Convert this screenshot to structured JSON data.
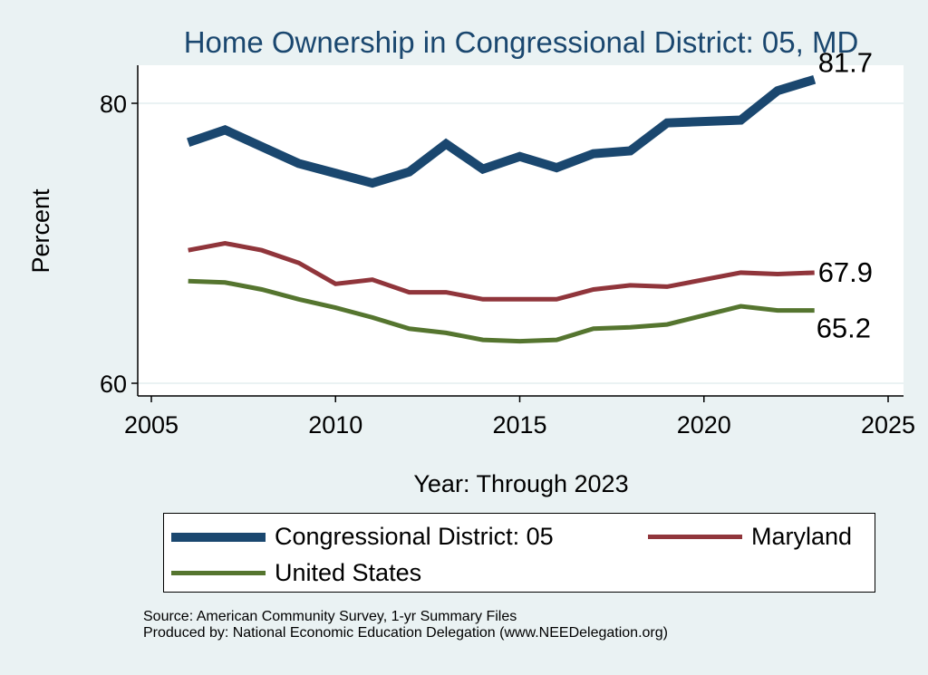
{
  "chart_data": {
    "type": "line",
    "title": "Home Ownership in Congressional District:  05, MD",
    "xlabel": "Year: Through 2023",
    "ylabel": "Percent",
    "xlim": [
      2005,
      2025.5
    ],
    "ylim": [
      59.1,
      82.6
    ],
    "xticks": [
      2005,
      2010,
      2015,
      2020,
      2025
    ],
    "yticks": [
      60,
      80
    ],
    "grid": "horizontal",
    "legend_position": "bottom",
    "x": [
      2006,
      2007,
      2008,
      2009,
      2010,
      2011,
      2012,
      2013,
      2014,
      2015,
      2016,
      2017,
      2018,
      2019,
      2021,
      2022,
      2023
    ],
    "series": [
      {
        "name": "Congressional District:  05",
        "color": "#1a476f",
        "values": [
          77.2,
          78.1,
          76.9,
          75.7,
          75.0,
          74.3,
          75.1,
          77.1,
          75.3,
          76.2,
          75.4,
          76.4,
          76.6,
          78.6,
          78.8,
          80.9,
          81.7
        ],
        "end_label": "81.7"
      },
      {
        "name": "Maryland",
        "color": "#90353b",
        "values": [
          69.5,
          70.0,
          69.5,
          68.6,
          67.1,
          67.4,
          66.5,
          66.5,
          66.0,
          66.0,
          66.0,
          66.7,
          67.0,
          66.9,
          67.9,
          67.8,
          67.9
        ],
        "end_label": "67.9"
      },
      {
        "name": "United States",
        "color": "#55752f",
        "values": [
          67.3,
          67.2,
          66.7,
          66.0,
          65.4,
          64.7,
          63.9,
          63.6,
          63.1,
          63.0,
          63.1,
          63.9,
          64.0,
          64.2,
          65.5,
          65.2,
          65.2
        ],
        "end_label": "65.2"
      }
    ]
  },
  "source": "Source: American Community Survey, 1-yr Summary Files",
  "produced": "Produced by: National Economic Education Delegation (www.NEEDelegation.org)"
}
